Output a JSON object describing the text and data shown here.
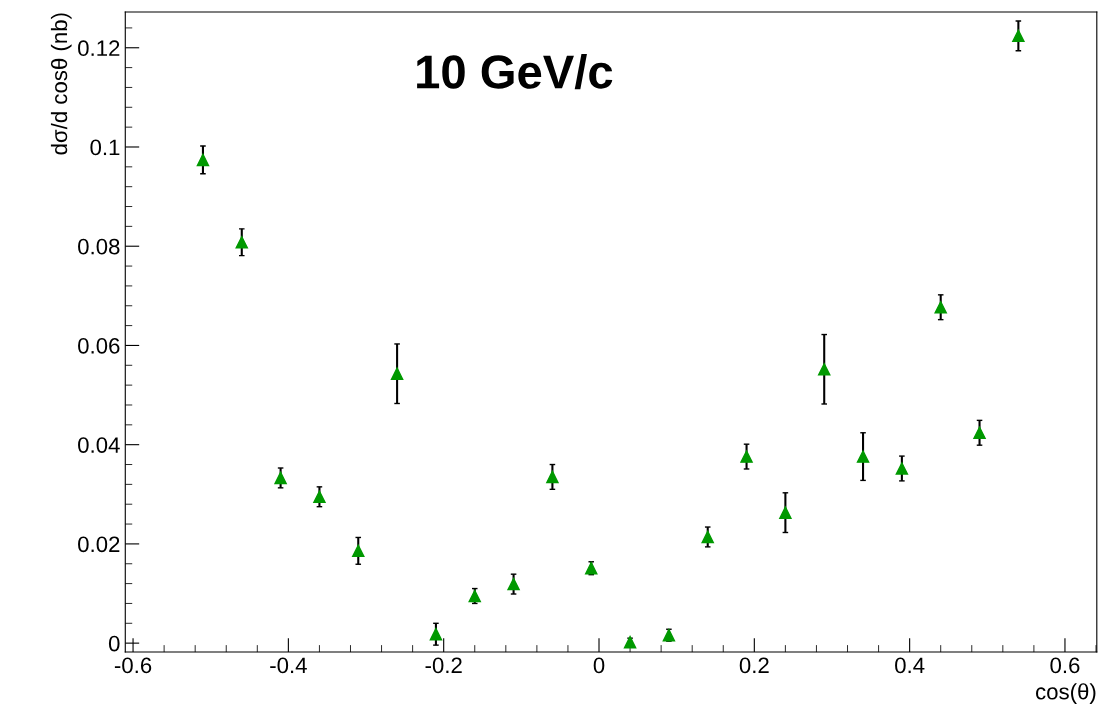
{
  "chart_data": {
    "type": "scatter",
    "xlabel": "cos(θ)",
    "ylabel": "dσ/d cosθ (nb)",
    "annotations": [
      "10 GeV/c"
    ],
    "x": [
      -0.51,
      -0.46,
      -0.41,
      -0.36,
      -0.31,
      -0.26,
      -0.21,
      -0.16,
      -0.11,
      -0.06,
      -0.01,
      0.04,
      0.09,
      0.14,
      0.19,
      0.24,
      0.29,
      0.34,
      0.39,
      0.44,
      0.49,
      0.54
    ],
    "series": [
      {
        "color": "#009900",
        "values": [
          0.0974,
          0.0808,
          0.0333,
          0.0295,
          0.0186,
          0.0543,
          0.0018,
          0.0095,
          0.0119,
          0.0335,
          0.0151,
          0.0002,
          0.0016,
          0.0214,
          0.0376,
          0.0263,
          0.0552,
          0.0376,
          0.0352,
          0.0677,
          0.0424,
          0.1224
        ],
        "errors": [
          0.0028,
          0.0027,
          0.002,
          0.002,
          0.0027,
          0.006,
          0.0022,
          0.0015,
          0.002,
          0.0025,
          0.0013,
          0.0008,
          0.0012,
          0.002,
          0.0025,
          0.004,
          0.007,
          0.0048,
          0.0025,
          0.0025,
          0.0025,
          0.003
        ]
      }
    ],
    "marker": "triangle",
    "grid": false,
    "legend": false,
    "xlim": [
      -0.61,
      0.641
    ],
    "ylim": [
      -0.0018,
      0.1272
    ],
    "xticks": [
      -0.6,
      -0.4,
      -0.2,
      0,
      0.2,
      0.4,
      0.6
    ],
    "yticks": [
      0,
      0.02,
      0.04,
      0.06,
      0.08,
      0.1,
      0.12
    ]
  }
}
